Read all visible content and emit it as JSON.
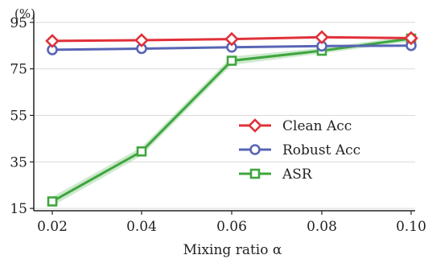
{
  "chart_data": {
    "type": "line",
    "unit_label": "(%)",
    "xlabel": "Mixing ratio α",
    "x": [
      0.02,
      0.04,
      0.06,
      0.08,
      0.1
    ],
    "x_tick_labels": [
      "0.02",
      "0.04",
      "0.06",
      "0.08",
      "0.10"
    ],
    "y_ticks": [
      15,
      35,
      55,
      75,
      95
    ],
    "ylim": [
      14,
      97
    ],
    "grid": "horizontal",
    "legend_position": "center-right",
    "series": [
      {
        "name": "Clean Acc",
        "color": "#e0313a",
        "marker": "diamond",
        "values": [
          87.0,
          87.3,
          87.8,
          88.6,
          88.2
        ]
      },
      {
        "name": "Robust Acc",
        "color": "#5865b5",
        "marker": "circle",
        "values": [
          83.2,
          83.7,
          84.3,
          84.8,
          85.0
        ]
      },
      {
        "name": "ASR",
        "color": "#3ea63e",
        "marker": "square",
        "values": [
          18.0,
          39.5,
          78.5,
          82.8,
          88.0
        ],
        "band": [
          2.0,
          1.8,
          1.8,
          1.2,
          1.2
        ]
      }
    ]
  }
}
